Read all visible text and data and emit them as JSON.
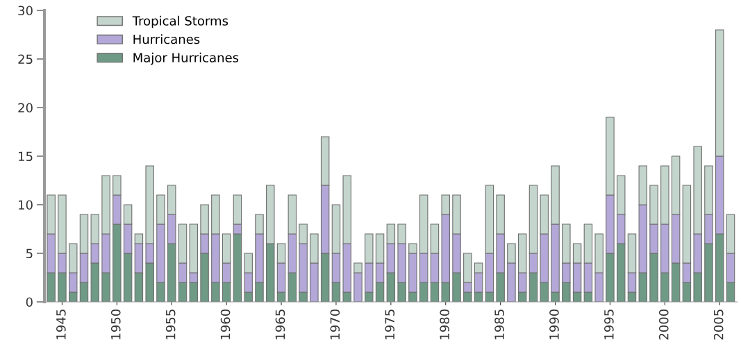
{
  "chart_data": {
    "type": "bar",
    "stacked": true,
    "categories": [
      null,
      "1945",
      null,
      null,
      null,
      null,
      "1950",
      null,
      null,
      null,
      null,
      "1955",
      null,
      null,
      null,
      null,
      "1960",
      null,
      null,
      null,
      null,
      "1965",
      null,
      null,
      null,
      null,
      "1970",
      null,
      null,
      null,
      null,
      "1975",
      null,
      null,
      null,
      null,
      "1980",
      null,
      null,
      null,
      null,
      "1985",
      null,
      null,
      null,
      null,
      "1990",
      null,
      null,
      null,
      null,
      "1995",
      null,
      null,
      null,
      null,
      "2000",
      null,
      null,
      null,
      null,
      "2005",
      null
    ],
    "series": [
      {
        "name": "Major Hurricanes",
        "color": "#6f9a86",
        "values": [
          3,
          3,
          1,
          2,
          4,
          3,
          8,
          5,
          3,
          4,
          2,
          6,
          2,
          2,
          5,
          2,
          2,
          7,
          1,
          2,
          6,
          1,
          3,
          1,
          0,
          5,
          2,
          1,
          0,
          1,
          2,
          3,
          2,
          1,
          2,
          2,
          2,
          3,
          1,
          1,
          1,
          3,
          0,
          1,
          3,
          2,
          1,
          2,
          1,
          1,
          0,
          5,
          6,
          1,
          3,
          5,
          3,
          4,
          2,
          3,
          6,
          7,
          2
        ]
      },
      {
        "name": "Hurricanes",
        "color": "#b3a8d8",
        "values": [
          4,
          2,
          2,
          3,
          2,
          4,
          3,
          3,
          3,
          2,
          6,
          3,
          2,
          1,
          2,
          5,
          2,
          1,
          2,
          5,
          0,
          3,
          4,
          5,
          4,
          7,
          3,
          5,
          3,
          3,
          2,
          3,
          4,
          4,
          3,
          3,
          7,
          4,
          1,
          2,
          4,
          4,
          4,
          2,
          2,
          5,
          7,
          2,
          3,
          3,
          3,
          6,
          3,
          2,
          7,
          3,
          5,
          5,
          2,
          4,
          3,
          8,
          3
        ]
      },
      {
        "name": "Tropical Storms",
        "color": "#c3d5cc",
        "values": [
          4,
          6,
          3,
          4,
          3,
          6,
          2,
          2,
          1,
          8,
          3,
          3,
          4,
          5,
          3,
          4,
          3,
          3,
          2,
          2,
          6,
          2,
          4,
          2,
          3,
          5,
          5,
          7,
          1,
          3,
          3,
          2,
          2,
          1,
          6,
          3,
          2,
          4,
          3,
          1,
          7,
          4,
          2,
          4,
          7,
          4,
          6,
          4,
          2,
          4,
          4,
          8,
          4,
          4,
          4,
          4,
          6,
          6,
          8,
          9,
          5,
          13,
          4
        ]
      }
    ],
    "ylim": [
      0,
      30
    ],
    "yticks": [
      0,
      5,
      10,
      15,
      20,
      25,
      30
    ],
    "grid": false,
    "legend": "top left"
  }
}
